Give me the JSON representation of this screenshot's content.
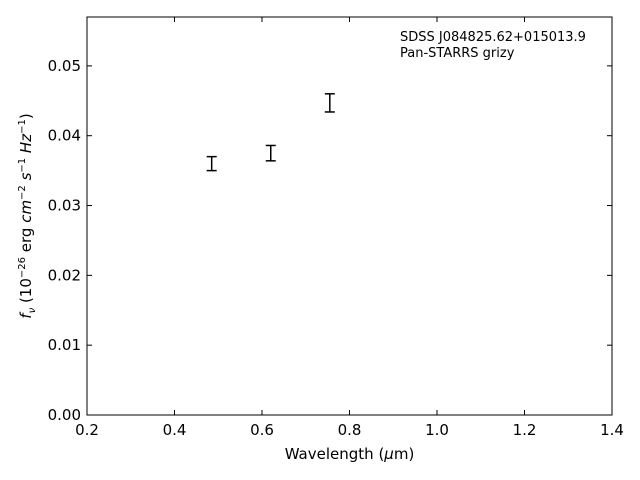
{
  "chart_data": {
    "type": "scatter",
    "xlabel": "Wavelength (μm)",
    "ylabel": "f_ν (10^-26 erg cm^-2 s^-1 Hz^-1)",
    "xlim": [
      0.2,
      1.4
    ],
    "ylim": [
      0.0,
      0.057
    ],
    "x_ticks": [
      0.2,
      0.4,
      0.6,
      0.8,
      1.0,
      1.2,
      1.4
    ],
    "x_tick_labels": [
      "0.2",
      "0.4",
      "0.6",
      "0.8",
      "1.0",
      "1.2",
      "1.4"
    ],
    "y_ticks": [
      0.0,
      0.01,
      0.02,
      0.03,
      0.04,
      0.05
    ],
    "y_tick_labels": [
      "0.00",
      "0.01",
      "0.02",
      "0.03",
      "0.04",
      "0.05"
    ],
    "annotations": [
      "SDSS J084825.62+015013.9",
      "Pan-STARRS grizy"
    ],
    "grid": false,
    "points": [
      {
        "x": 0.485,
        "y": 0.036,
        "yerr": 0.001
      },
      {
        "x": 0.62,
        "y": 0.0375,
        "yerr": 0.0011
      },
      {
        "x": 0.755,
        "y": 0.0447,
        "yerr": 0.0013
      }
    ]
  }
}
